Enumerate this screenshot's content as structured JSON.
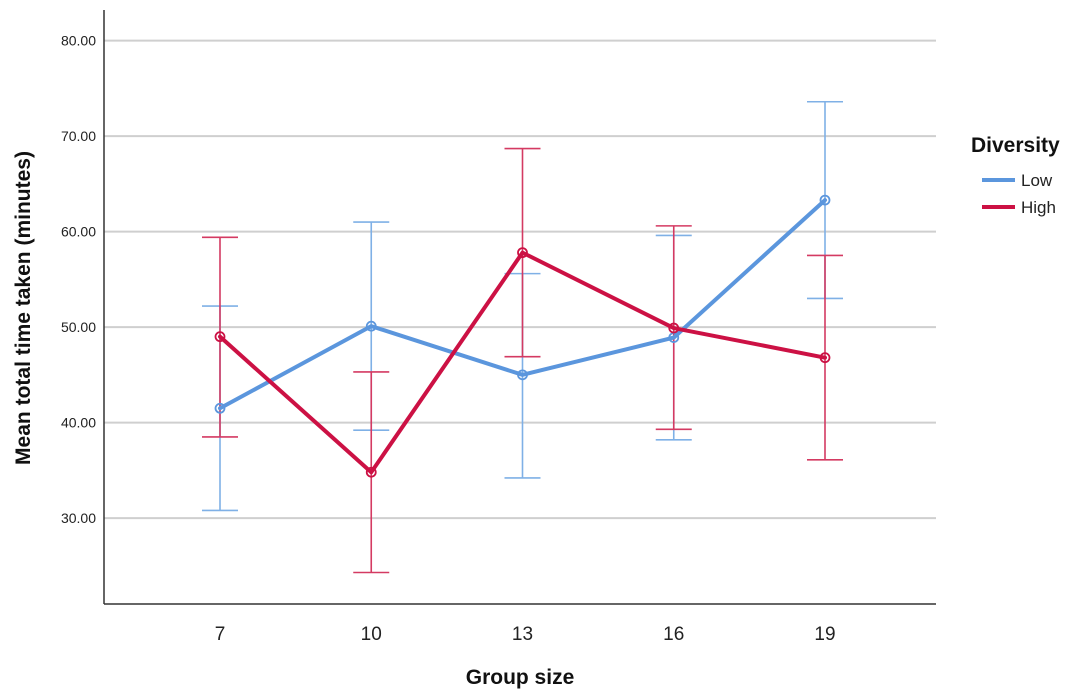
{
  "chart_data": {
    "type": "line",
    "xlabel": "Group size",
    "ylabel": "Mean total time taken (minutes)",
    "categories": [
      "7",
      "10",
      "13",
      "16",
      "19"
    ],
    "ylim": [
      21,
      83
    ],
    "yticks": [
      "30.00",
      "40.00",
      "50.00",
      "60.00",
      "70.00",
      "80.00"
    ],
    "ytick_values": [
      30,
      40,
      50,
      60,
      70,
      80
    ],
    "grid": "horizontal",
    "legend": {
      "title": "Diversity",
      "position": "right"
    },
    "series": [
      {
        "name": "Low",
        "color": "#5b96dd",
        "errorbar_color": "#7fb0e6",
        "values": [
          41.5,
          50.1,
          45.0,
          48.9,
          63.3
        ],
        "lower": [
          30.8,
          39.2,
          34.2,
          38.2,
          53.0
        ],
        "upper": [
          52.2,
          61.0,
          55.6,
          59.6,
          73.6
        ]
      },
      {
        "name": "High",
        "color": "#cc1144",
        "errorbar_color": "#d43a62",
        "values": [
          49.0,
          34.8,
          57.8,
          49.9,
          46.8
        ],
        "lower": [
          38.5,
          24.3,
          46.9,
          39.3,
          36.1
        ],
        "upper": [
          59.4,
          45.3,
          68.7,
          60.6,
          57.5
        ]
      }
    ]
  }
}
